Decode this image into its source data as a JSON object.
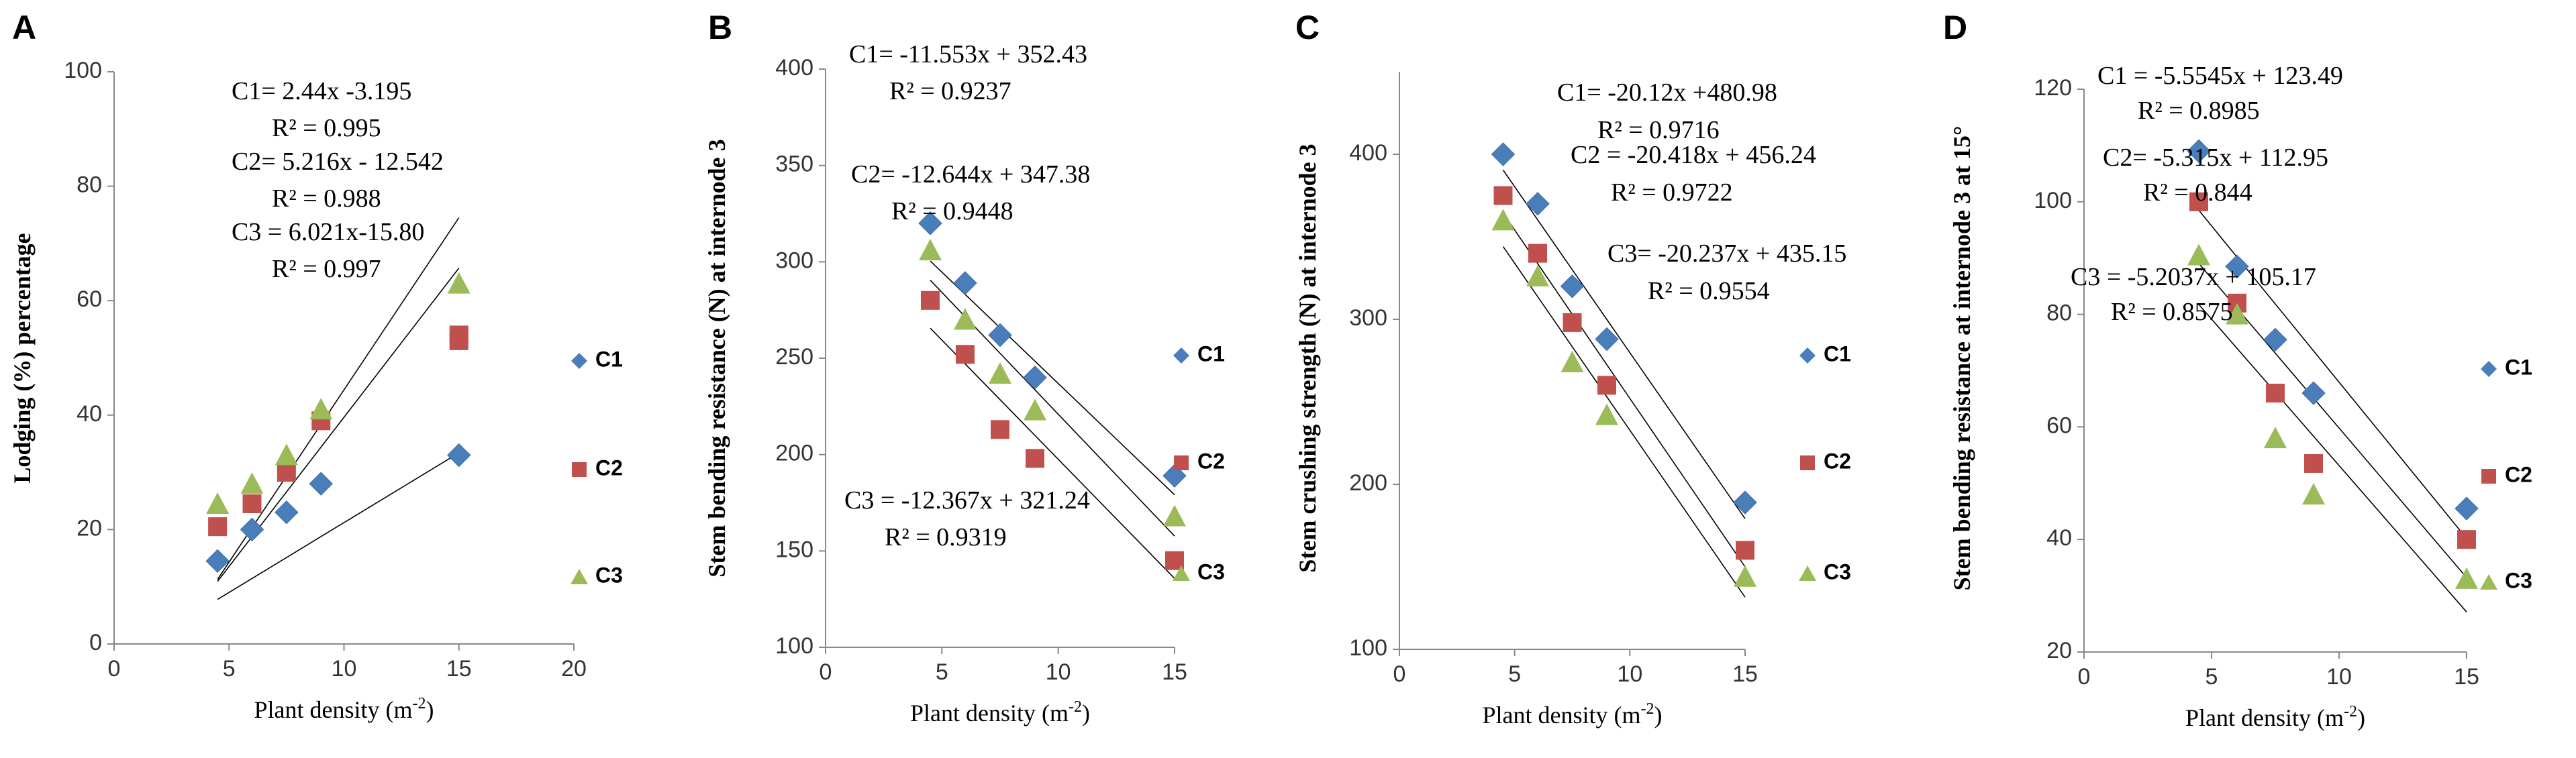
{
  "colors": {
    "C1": "#4a7ebb",
    "C2": "#c0504d",
    "C3": "#9bbb59",
    "axis": "#888888",
    "text": "#000000"
  },
  "chart_data": [
    {
      "type": "scatter",
      "panel_label": "A",
      "xlabel": "Plant density (m-2)",
      "xlabel_parts": {
        "main": "Plant density (m",
        "sup": "-2",
        "end": ")"
      },
      "ylabel": "Lodging (%) percentage",
      "xlim": [
        0,
        20
      ],
      "ylim": [
        0,
        100
      ],
      "xticks": [
        0,
        5,
        10,
        15,
        20
      ],
      "yticks": [
        0,
        20,
        40,
        60,
        80,
        100
      ],
      "x": [
        4.5,
        6,
        7.5,
        9,
        15
      ],
      "series": [
        {
          "name": "C1",
          "marker": "diamond",
          "values": [
            14.5,
            20,
            23,
            28,
            33
          ],
          "trend": {
            "slope": 2.44,
            "intercept": -3.195
          }
        },
        {
          "name": "C2",
          "marker": "square",
          "values": [
            20.5,
            24.5,
            30,
            39,
            53
          ],
          "extra_points": [
            [
              15,
              54
            ]
          ],
          "trend": {
            "slope": 5.216,
            "intercept": -12.542
          }
        },
        {
          "name": "C3",
          "marker": "triangle",
          "values": [
            24.5,
            28,
            33,
            41,
            63
          ],
          "trend": {
            "slope": 6.021,
            "intercept": -15.8
          }
        }
      ],
      "trend_xrange": [
        4.5,
        15
      ],
      "equations": [
        {
          "text": "C1= 2.44x -3.195",
          "r2": "R² = 0.995"
        },
        {
          "text": "C2= 5.216x - 12.542",
          "r2": "R² = 0.988"
        },
        {
          "text": "C3 = 6.021x-15.80",
          "r2": "R² = 0.997"
        }
      ]
    },
    {
      "type": "scatter",
      "panel_label": "B",
      "xlabel": "Plant density (m-2)",
      "xlabel_parts": {
        "main": "Plant density (m",
        "sup": "-2",
        "end": ")"
      },
      "ylabel": "Stem bending resistance (N) at internode 3",
      "xlim": [
        0,
        15
      ],
      "ylim": [
        100,
        400
      ],
      "xticks": [
        0,
        5,
        10,
        15
      ],
      "yticks": [
        100,
        150,
        200,
        250,
        300,
        350,
        400
      ],
      "x": [
        4.5,
        6,
        7.5,
        9,
        15
      ],
      "series": [
        {
          "name": "C1",
          "marker": "diamond",
          "values": [
            320,
            289,
            262,
            240,
            189
          ],
          "trend": {
            "slope": -11.553,
            "intercept": 352.43
          }
        },
        {
          "name": "C2",
          "marker": "square",
          "values": [
            280,
            252,
            213,
            198,
            145
          ],
          "trend": {
            "slope": -12.644,
            "intercept": 347.38
          }
        },
        {
          "name": "C3",
          "marker": "triangle",
          "values": [
            306,
            270,
            242,
            223,
            168
          ],
          "trend": {
            "slope": -12.367,
            "intercept": 321.24
          }
        }
      ],
      "trend_xrange": [
        4.5,
        15
      ],
      "equations": [
        {
          "text": "C1= -11.553x + 352.43",
          "r2": "R² = 0.9237"
        },
        {
          "text": "C2= -12.644x + 347.38",
          "r2": "R² = 0.9448"
        },
        {
          "text": "C3 = -12.367x + 321.24",
          "r2": "R² = 0.9319"
        }
      ]
    },
    {
      "type": "scatter",
      "panel_label": "C",
      "xlabel": "Plant density (m-2)",
      "xlabel_parts": {
        "main": "Plant density  (m",
        "sup": "-2",
        "end": ")"
      },
      "ylabel": "Stem crushing strength (N) at internode 3",
      "xlim": [
        0,
        15
      ],
      "ylim": [
        100,
        450
      ],
      "xticks": [
        0,
        5,
        10,
        15
      ],
      "yticks": [
        100,
        200,
        300,
        400
      ],
      "x": [
        4.5,
        6,
        7.5,
        9,
        15
      ],
      "series": [
        {
          "name": "C1",
          "marker": "diamond",
          "values": [
            400,
            370,
            320,
            288,
            189
          ],
          "trend": {
            "slope": -20.12,
            "intercept": 480.98
          }
        },
        {
          "name": "C2",
          "marker": "square",
          "values": [
            375,
            340,
            298,
            260,
            160
          ],
          "trend": {
            "slope": -20.418,
            "intercept": 456.24
          }
        },
        {
          "name": "C3",
          "marker": "triangle",
          "values": [
            360,
            326,
            274,
            242,
            144
          ],
          "trend": {
            "slope": -20.237,
            "intercept": 435.15
          }
        }
      ],
      "trend_xrange": [
        4.5,
        15
      ],
      "equations": [
        {
          "text": "C1= -20.12x +480.98",
          "r2": "R² = 0.9716"
        },
        {
          "text": "C2 = -20.418x + 456.24",
          "r2": "R² = 0.9722"
        },
        {
          "text": "C3= -20.237x + 435.15",
          "r2": "R² = 0.9554"
        }
      ]
    },
    {
      "type": "scatter",
      "panel_label": "D",
      "xlabel": "Plant density (m-2)",
      "xlabel_parts": {
        "main": "Plant density  (m",
        "sup": "-2",
        "end": ")"
      },
      "ylabel": "Stem bending resistance at internode 3 at 15°",
      "xlim": [
        0,
        15
      ],
      "ylim": [
        20,
        120
      ],
      "xticks": [
        0,
        5,
        10,
        15
      ],
      "yticks": [
        20,
        40,
        60,
        80,
        100,
        120
      ],
      "x": [
        4.5,
        6,
        7.5,
        9,
        15
      ],
      "series": [
        {
          "name": "C1",
          "marker": "diamond",
          "values": [
            109,
            88.5,
            75.5,
            66,
            45.5
          ],
          "trend": {
            "slope": -5.5545,
            "intercept": 123.49
          }
        },
        {
          "name": "C2",
          "marker": "square",
          "values": [
            100,
            82,
            66,
            53.5,
            40
          ],
          "trend": {
            "slope": -5.315,
            "intercept": 112.95
          }
        },
        {
          "name": "C3",
          "marker": "triangle",
          "values": [
            90.5,
            80,
            58,
            48,
            33
          ],
          "trend": {
            "slope": -5.2037,
            "intercept": 105.17
          }
        }
      ],
      "trend_xrange": [
        4.5,
        15
      ],
      "equations": [
        {
          "text": "C1 = -5.5545x + 123.49",
          "r2": "R² = 0.8985"
        },
        {
          "text": "C2= -5.315x + 112.95",
          "r2": "R² = 0.844"
        },
        {
          "text": "C3 = -5.2037x + 105.17",
          "r2": "R² = 0.8575"
        }
      ]
    }
  ]
}
